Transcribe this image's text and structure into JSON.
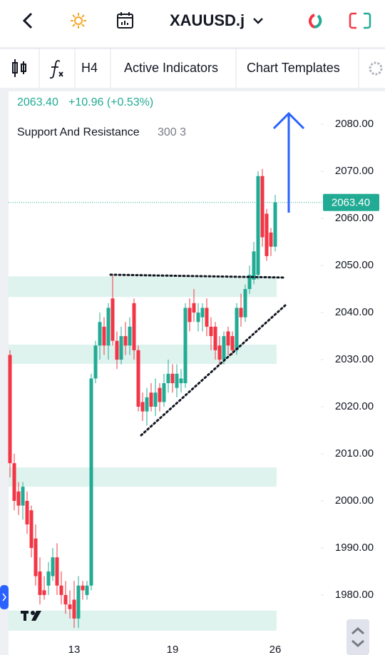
{
  "ui": {
    "symbol": "XAUUSD.j",
    "timeframe": "H4",
    "indicators_button": "Active Indicators",
    "templates_button": "Chart Templates"
  },
  "chart_data": {
    "type": "candlestick",
    "price_change": "+10.96 (+0.53%)",
    "indicator": {
      "name": "Support And Resistance",
      "params": "300 3"
    },
    "last_price": {
      "value": 2063.4,
      "label": "2063.40"
    },
    "categories": [
      null,
      null,
      null,
      null,
      null,
      null,
      null,
      null,
      null,
      null,
      null,
      null,
      null,
      null,
      null,
      "13",
      null,
      null,
      null,
      null,
      null,
      null,
      null,
      null,
      null,
      null,
      null,
      null,
      null,
      null,
      null,
      null,
      null,
      null,
      null,
      null,
      null,
      null,
      "19",
      null,
      null,
      null,
      null,
      null,
      null,
      null,
      null,
      null,
      null,
      null,
      null,
      null,
      null,
      null,
      null,
      null,
      null,
      null,
      null,
      null,
      null,
      null,
      "26"
    ],
    "open": [
      2031,
      2008,
      2002,
      1999,
      2000,
      1998,
      1992,
      1985,
      1981,
      1982,
      1984,
      1988,
      1982,
      1980,
      1978,
      1979,
      1975,
      1982,
      1980,
      1982,
      2026,
      2033,
      2037,
      2033,
      2043,
      2034,
      2030,
      2035,
      2033,
      2042,
      2032,
      2021,
      2019,
      2023,
      2020,
      2024,
      2021,
      2025,
      2027,
      2024,
      2025,
      2025,
      2041,
      2042,
      2038,
      2039,
      2041,
      2037,
      2037,
      2033,
      2030,
      2036,
      2035,
      2032,
      2041,
      2039,
      2045,
      2047,
      2048,
      2069,
      2061,
      2057,
      2054
    ],
    "high": [
      2032,
      2010,
      2004,
      2004,
      2002,
      1999,
      1995,
      1988,
      1984,
      1987,
      1990,
      1991,
      1985,
      1983,
      1981,
      1983,
      1984,
      1983,
      1983,
      2027,
      2034,
      2040,
      2039,
      2042,
      2048,
      2036,
      2037,
      2038,
      2039,
      2043,
      2033,
      2023,
      2024,
      2025,
      2026,
      2025,
      2027,
      2030,
      2029,
      2029,
      2028,
      2042,
      2043,
      2045,
      2042,
      2042,
      2043,
      2039,
      2038,
      2035,
      2036,
      2037,
      2036,
      2042,
      2044,
      2046,
      2050,
      2055,
      2070,
      2070.5,
      2062,
      2058,
      2065
    ],
    "low": [
      2005,
      1998,
      1997,
      1996,
      1993,
      1988,
      1982,
      1978,
      1979,
      1980,
      1983,
      1980,
      1978,
      1976,
      1975,
      1973,
      1973,
      1979,
      1979,
      1981,
      2025,
      2030,
      2031,
      2030,
      2033,
      2028,
      2029,
      2031,
      2031,
      2030,
      2019,
      2017,
      2016,
      2019,
      2018,
      2019,
      2020,
      2023,
      2023,
      2022,
      2023,
      2024,
      2036,
      2038,
      2036,
      2036,
      2035,
      2032,
      2030,
      2029,
      2029,
      2031,
      2031,
      2031,
      2037,
      2038,
      2044,
      2046,
      2047,
      2054,
      2051,
      2052,
      2053
    ],
    "close": [
      2008,
      2000,
      1999,
      2003,
      1995,
      1990,
      1984,
      1980,
      1980,
      1985,
      1988,
      1982,
      1980,
      1978,
      1977,
      1975,
      1982,
      1981,
      1982,
      2026,
      2033,
      2038,
      2033,
      2041,
      2034,
      2030,
      2035,
      2033,
      2037,
      2032,
      2020,
      2019,
      2022,
      2020,
      2023,
      2021,
      2025,
      2027,
      2025,
      2027,
      2026,
      2041,
      2038,
      2040,
      2040,
      2041,
      2037,
      2035,
      2032,
      2030,
      2035,
      2033,
      2032,
      2041,
      2039,
      2045,
      2048,
      2053,
      2069,
      2056,
      2052,
      2054,
      2063.4
    ],
    "zones": [
      [
        2043.3,
        2047.7
      ],
      [
        2029.1,
        2033.2
      ],
      [
        2003.0,
        2007.1
      ],
      [
        1972.4,
        1976.7
      ]
    ],
    "up_color": "#22ab94",
    "down_color": "#f23645",
    "zone_color": "#dff3ee",
    "ylim": [
      1971.5,
      2087
    ],
    "yticks": [
      {
        "value": 1980,
        "label": "1980.00"
      },
      {
        "value": 1990,
        "label": "1990.00"
      },
      {
        "value": 2000,
        "label": "2000.00"
      },
      {
        "value": 2010,
        "label": "2010.00"
      },
      {
        "value": 2020,
        "label": "2020.00"
      },
      {
        "value": 2030,
        "label": "2030.00"
      },
      {
        "value": 2040,
        "label": "2040.00"
      },
      {
        "value": 2050,
        "label": "2050.00"
      },
      {
        "value": 2060,
        "label": "2060.00"
      },
      {
        "value": 2070,
        "label": "2070.00"
      },
      {
        "value": 2080,
        "label": "2080.00"
      }
    ]
  }
}
